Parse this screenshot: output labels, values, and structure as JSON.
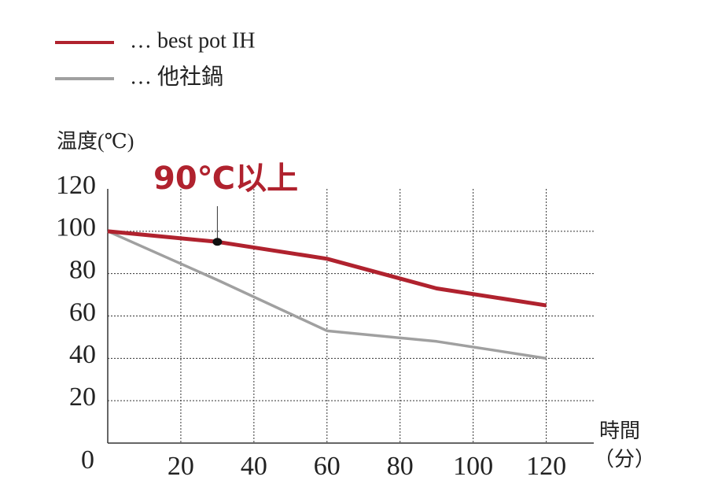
{
  "chart_data": {
    "type": "line",
    "y_label": "温度(℃)",
    "x_label_lines": [
      "時間",
      "（分）"
    ],
    "x": [
      0,
      30,
      60,
      90,
      120
    ],
    "series": [
      {
        "name": "… best pot IH",
        "color": "#b0222e",
        "values": [
          100,
          95,
          87,
          73,
          65
        ]
      },
      {
        "name": "… 他社鍋",
        "color": "#a0a0a0",
        "values": [
          100,
          77,
          53,
          48,
          40
        ]
      }
    ],
    "annotations": [
      {
        "text": "90℃以上",
        "x": 30,
        "y": 95
      }
    ],
    "xlim": [
      0,
      133
    ],
    "ylim": [
      0,
      120
    ],
    "xticks": [
      20,
      40,
      60,
      80,
      100,
      120
    ],
    "yticks": [
      0,
      20,
      40,
      60,
      80,
      100,
      120
    ],
    "grid": true
  }
}
